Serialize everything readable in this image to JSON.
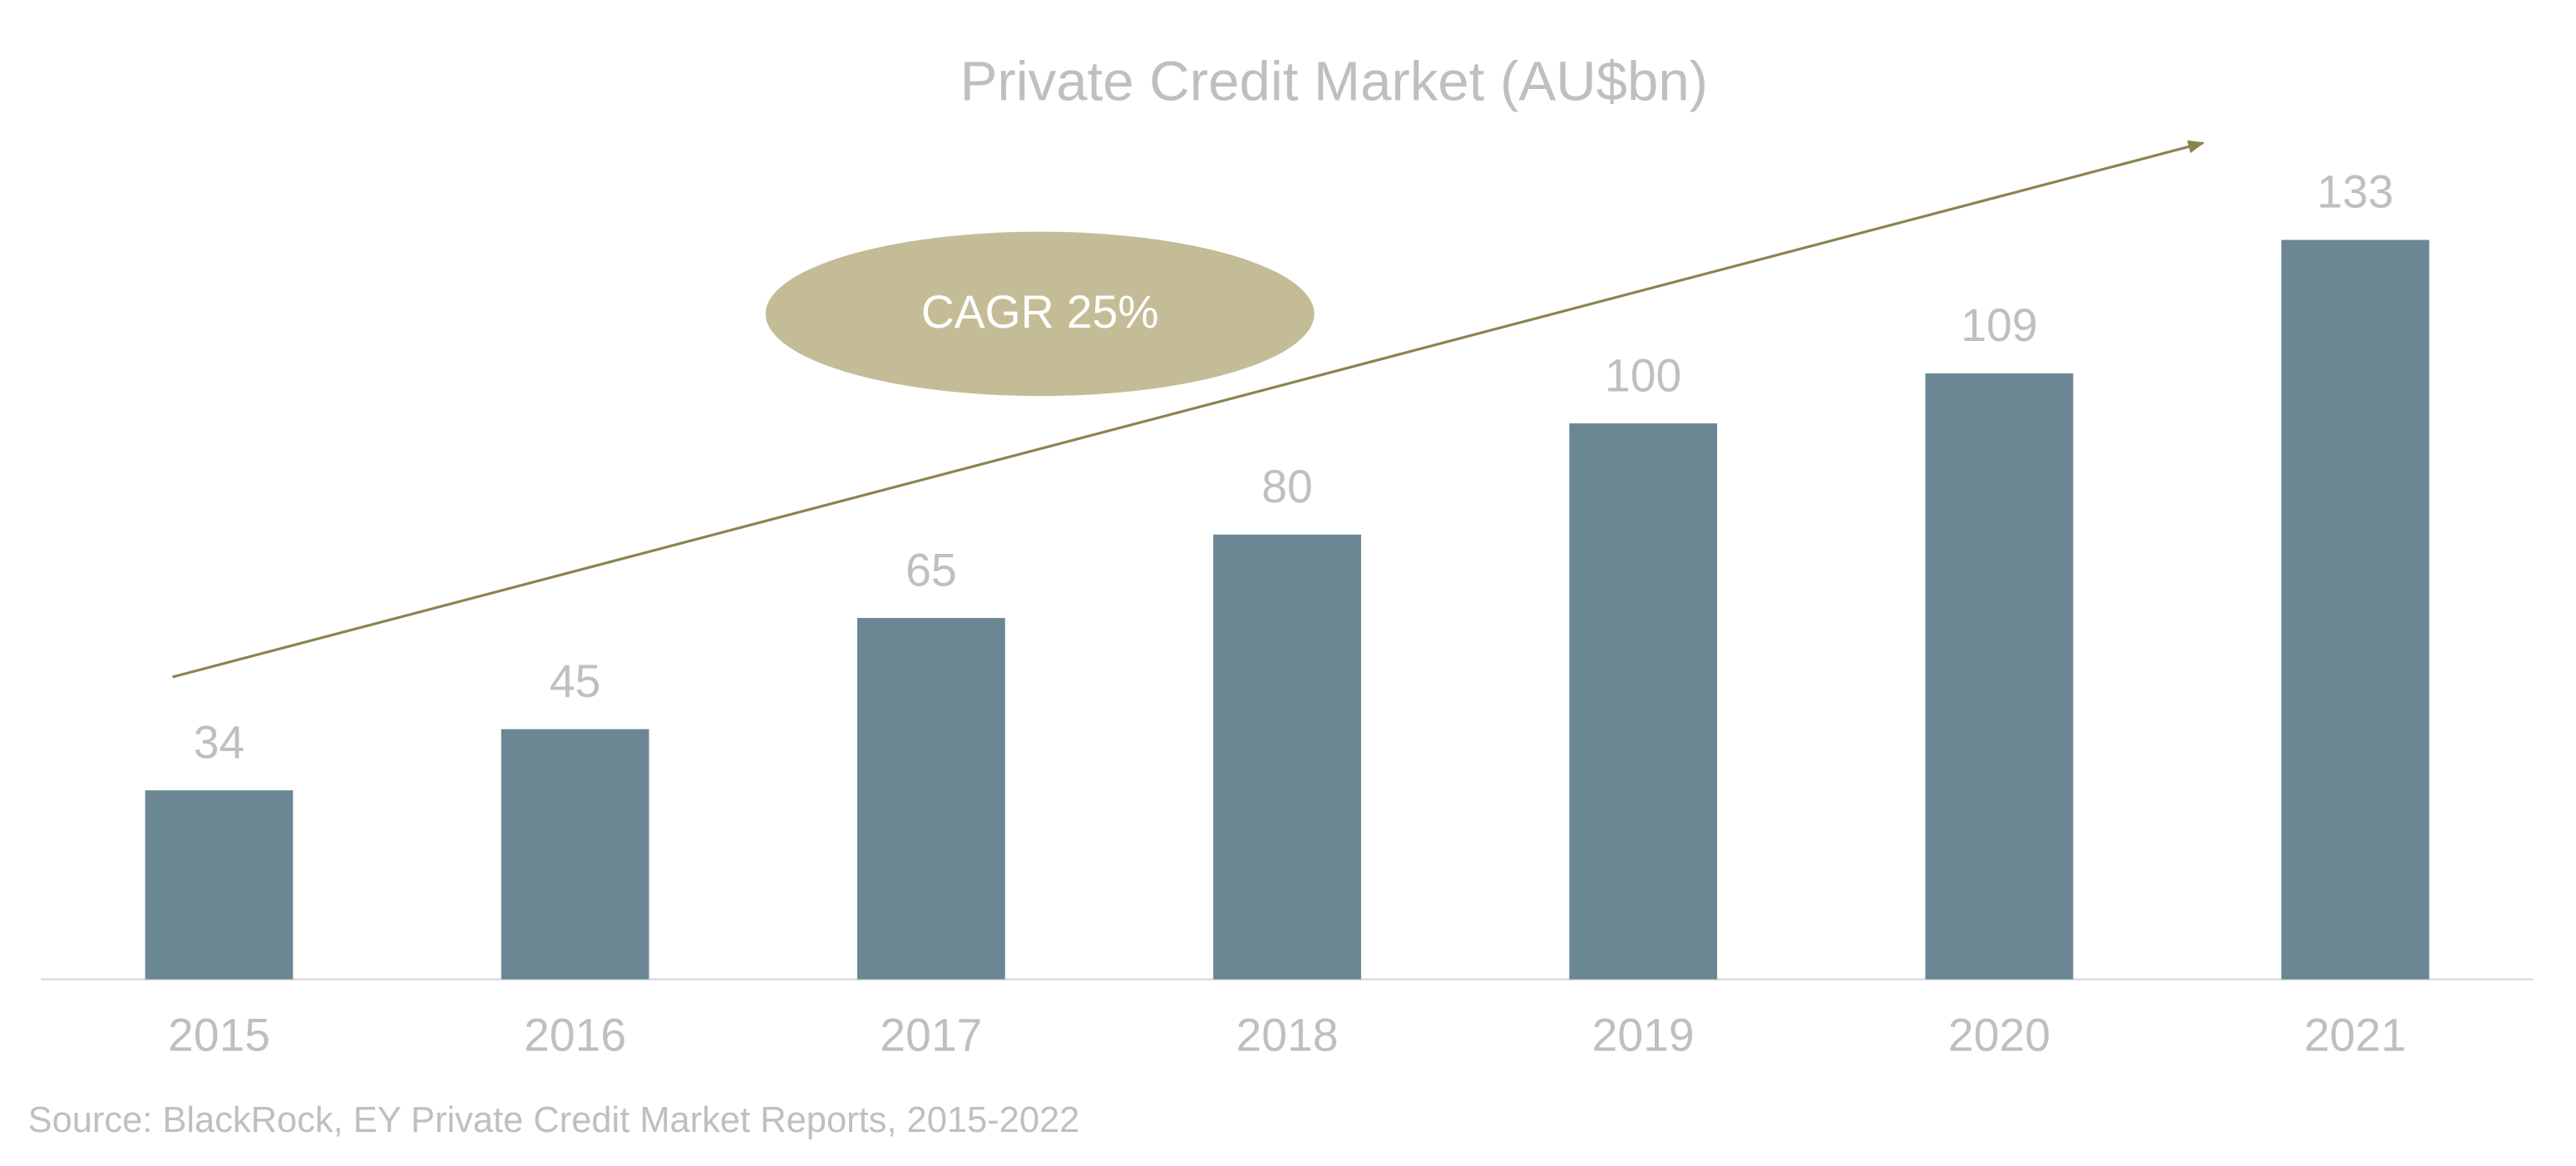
{
  "chart_data": {
    "type": "bar",
    "title": "Private Credit Market (AU$bn)",
    "categories": [
      "2015",
      "2016",
      "2017",
      "2018",
      "2019",
      "2020",
      "2021"
    ],
    "values": [
      34,
      45,
      65,
      80,
      100,
      109,
      133
    ],
    "color": "#6b8793",
    "annotations": [
      "CAGR 25%"
    ],
    "source": "Source: BlackRock, EY Private Credit Market Reports, 2015-2022"
  }
}
